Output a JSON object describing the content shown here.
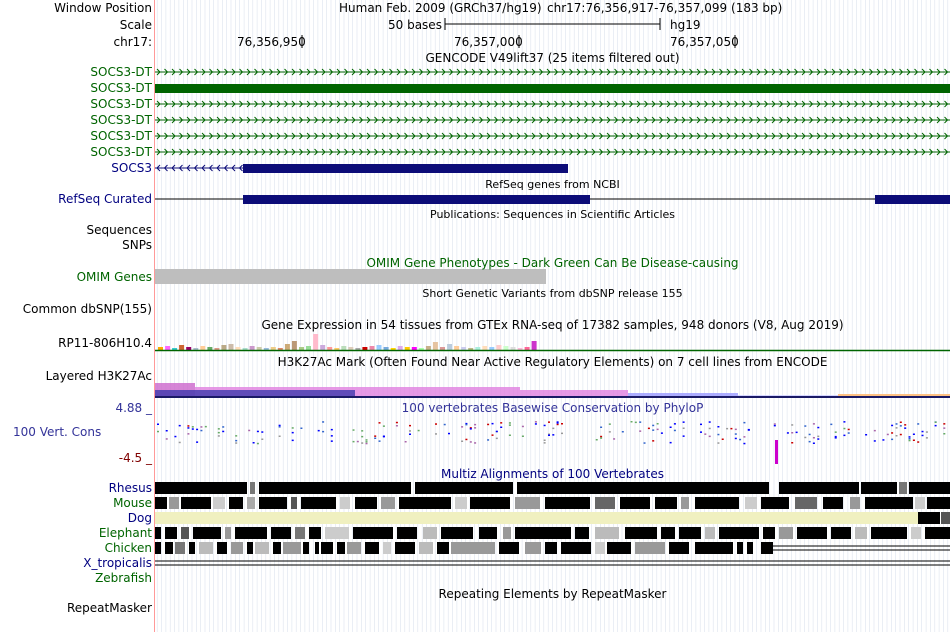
{
  "header": {
    "window_position_label": "Window Position",
    "assembly_text": "Human Feb. 2009 (GRCh37/hg19)",
    "position_text": "chr17:76,356,917-76,357,099 (183 bp)",
    "scale_label": "Scale",
    "scale_bar_text": "50 bases",
    "scale_db": "hg19",
    "chrom_label": "chr17:",
    "ticks": [
      "76,356,950",
      "76,357,000",
      "76,357,050"
    ]
  },
  "tracks": {
    "gencode": {
      "title": "GENCODE V49lift37 (25 items filtered out)",
      "items": [
        "SOCS3-DT",
        "SOCS3-DT",
        "SOCS3-DT",
        "SOCS3-DT",
        "SOCS3-DT",
        "SOCS3-DT",
        "SOCS3"
      ],
      "colors": {
        "lnc": "#006400",
        "coding": "#0c0c78"
      }
    },
    "refseq": {
      "title": "RefSeq genes from NCBI",
      "label": "RefSeq Curated"
    },
    "publications": {
      "title": "Publications: Sequences in Scientific Articles",
      "labels": [
        "Sequences",
        "SNPs"
      ]
    },
    "omim": {
      "title": "OMIM Gene Phenotypes - Dark Green Can Be Disease-causing",
      "label": "OMIM Genes"
    },
    "dbsnp": {
      "title": "Short Genetic Variants from dbSNP release 155",
      "label": "Common dbSNP(155)"
    },
    "gtex": {
      "title": "Gene Expression in 54 tissues from GTEx RNA-seq of 17382 samples, 948 donors (V8, Aug 2019)",
      "label": "RP11-806H10.4"
    },
    "h3k27ac": {
      "title": "H3K27Ac Mark (Often Found Near Active Regulatory Elements) on 7 cell lines from ENCODE",
      "label": "Layered H3K27Ac"
    },
    "phylop": {
      "title": "100 vertebrates Basewise Conservation by PhyloP",
      "label": "100 Vert. Cons",
      "max_label": "4.88 _",
      "min_label": "-4.5 _"
    },
    "multiz": {
      "title": "Multiz Alignments of 100 Vertebrates",
      "species": [
        "Rhesus",
        "Mouse",
        "Dog",
        "Elephant",
        "Chicken",
        "X_tropicalis",
        "Zebrafish"
      ]
    },
    "repeatmasker": {
      "title": "Repeating Elements by RepeatMasker",
      "label": "RepeatMasker"
    }
  }
}
